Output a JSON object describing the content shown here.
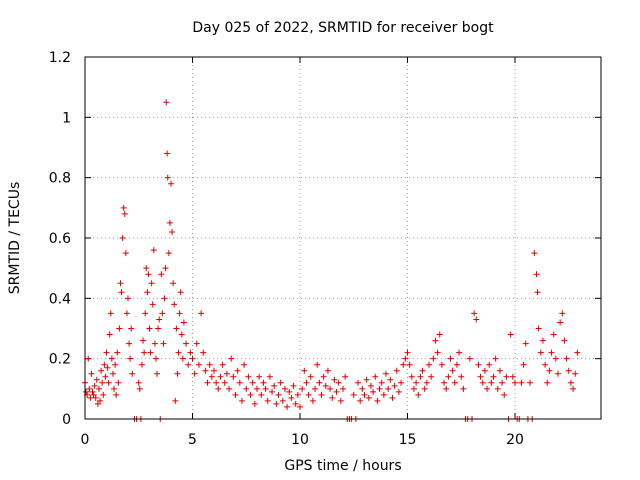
{
  "chart_data": {
    "type": "scatter",
    "title": "Day 025 of 2022, SRMTID for receiver bogt",
    "xlabel": "GPS time / hours",
    "ylabel": "SRMTID / TECUs",
    "xlim": [
      0,
      24
    ],
    "ylim": [
      0,
      1.2
    ],
    "xticks": [
      0,
      5,
      10,
      15,
      20
    ],
    "xtick_labels": [
      "0",
      "5",
      "10",
      "15",
      "20"
    ],
    "yticks": [
      0,
      0.2,
      0.4,
      0.6,
      0.8,
      1,
      1.2
    ],
    "ytick_labels": [
      "0",
      "0.2",
      "0.4",
      "0.6",
      "0.8",
      "1",
      "1.2"
    ],
    "grid": true,
    "marker": "+",
    "series": [
      {
        "name": "SRMTID",
        "color": "#e00000",
        "points": [
          [
            0.0,
            0.12
          ],
          [
            0.05,
            0.09
          ],
          [
            0.1,
            0.08
          ],
          [
            0.15,
            0.2
          ],
          [
            0.2,
            0.1
          ],
          [
            0.25,
            0.07
          ],
          [
            0.3,
            0.15
          ],
          [
            0.35,
            0.09
          ],
          [
            0.4,
            0.08
          ],
          [
            0.45,
            0.11
          ],
          [
            0.5,
            0.07
          ],
          [
            0.55,
            0.13
          ],
          [
            0.6,
            0.05
          ],
          [
            0.65,
            0.1
          ],
          [
            0.7,
            0.06
          ],
          [
            0.75,
            0.16
          ],
          [
            0.8,
            0.12
          ],
          [
            0.85,
            0.08
          ],
          [
            0.9,
            0.18
          ],
          [
            0.95,
            0.14
          ],
          [
            1.0,
            0.22
          ],
          [
            1.05,
            0.17
          ],
          [
            1.1,
            0.12
          ],
          [
            1.15,
            0.28
          ],
          [
            1.2,
            0.35
          ],
          [
            1.25,
            0.2
          ],
          [
            1.3,
            0.15
          ],
          [
            1.35,
            0.1
          ],
          [
            1.4,
            0.18
          ],
          [
            1.45,
            0.08
          ],
          [
            1.5,
            0.22
          ],
          [
            1.55,
            0.12
          ],
          [
            1.6,
            0.3
          ],
          [
            1.65,
            0.45
          ],
          [
            1.7,
            0.42
          ],
          [
            1.75,
            0.6
          ],
          [
            1.8,
            0.7
          ],
          [
            1.85,
            0.68
          ],
          [
            1.9,
            0.55
          ],
          [
            1.95,
            0.35
          ],
          [
            2.0,
            0.4
          ],
          [
            2.05,
            0.25
          ],
          [
            2.1,
            0.2
          ],
          [
            2.15,
            0.3
          ],
          [
            2.2,
            0.15
          ],
          [
            2.3,
            0.0
          ],
          [
            2.4,
            0.0
          ],
          [
            2.5,
            0.12
          ],
          [
            2.55,
            0.1
          ],
          [
            2.6,
            0.0
          ],
          [
            2.65,
            0.18
          ],
          [
            2.7,
            0.26
          ],
          [
            2.75,
            0.22
          ],
          [
            2.8,
            0.35
          ],
          [
            2.85,
            0.5
          ],
          [
            2.9,
            0.42
          ],
          [
            2.95,
            0.48
          ],
          [
            3.0,
            0.3
          ],
          [
            3.05,
            0.22
          ],
          [
            3.1,
            0.45
          ],
          [
            3.15,
            0.38
          ],
          [
            3.2,
            0.56
          ],
          [
            3.25,
            0.25
          ],
          [
            3.3,
            0.2
          ],
          [
            3.35,
            0.15
          ],
          [
            3.4,
            0.3
          ],
          [
            3.45,
            0.33
          ],
          [
            3.5,
            0.0
          ],
          [
            3.55,
            0.48
          ],
          [
            3.6,
            0.35
          ],
          [
            3.65,
            0.25
          ],
          [
            3.7,
            0.4
          ],
          [
            3.75,
            0.5
          ],
          [
            3.78,
            1.05
          ],
          [
            3.82,
            0.88
          ],
          [
            3.85,
            0.8
          ],
          [
            3.9,
            0.55
          ],
          [
            3.95,
            0.65
          ],
          [
            4.0,
            0.78
          ],
          [
            4.05,
            0.62
          ],
          [
            4.1,
            0.45
          ],
          [
            4.15,
            0.38
          ],
          [
            4.2,
            0.06
          ],
          [
            4.25,
            0.3
          ],
          [
            4.3,
            0.15
          ],
          [
            4.35,
            0.22
          ],
          [
            4.4,
            0.35
          ],
          [
            4.45,
            0.42
          ],
          [
            4.5,
            0.28
          ],
          [
            4.55,
            0.2
          ],
          [
            4.6,
            0.32
          ],
          [
            4.7,
            0.25
          ],
          [
            4.8,
            0.18
          ],
          [
            4.9,
            0.22
          ],
          [
            5.0,
            0.2
          ],
          [
            5.1,
            0.15
          ],
          [
            5.2,
            0.25
          ],
          [
            5.3,
            0.18
          ],
          [
            5.4,
            0.35
          ],
          [
            5.5,
            0.22
          ],
          [
            5.6,
            0.16
          ],
          [
            5.7,
            0.12
          ],
          [
            5.8,
            0.18
          ],
          [
            5.9,
            0.14
          ],
          [
            6.0,
            0.16
          ],
          [
            6.1,
            0.12
          ],
          [
            6.2,
            0.1
          ],
          [
            6.3,
            0.14
          ],
          [
            6.4,
            0.18
          ],
          [
            6.5,
            0.12
          ],
          [
            6.6,
            0.15
          ],
          [
            6.7,
            0.1
          ],
          [
            6.8,
            0.2
          ],
          [
            6.9,
            0.14
          ],
          [
            7.0,
            0.08
          ],
          [
            7.1,
            0.16
          ],
          [
            7.2,
            0.12
          ],
          [
            7.3,
            0.06
          ],
          [
            7.4,
            0.18
          ],
          [
            7.5,
            0.1
          ],
          [
            7.6,
            0.14
          ],
          [
            7.7,
            0.08
          ],
          [
            7.8,
            0.12
          ],
          [
            7.9,
            0.05
          ],
          [
            8.0,
            0.1
          ],
          [
            8.1,
            0.14
          ],
          [
            8.2,
            0.08
          ],
          [
            8.3,
            0.12
          ],
          [
            8.4,
            0.1
          ],
          [
            8.5,
            0.06
          ],
          [
            8.6,
            0.14
          ],
          [
            8.7,
            0.09
          ],
          [
            8.8,
            0.11
          ],
          [
            8.9,
            0.05
          ],
          [
            9.0,
            0.08
          ],
          [
            9.1,
            0.12
          ],
          [
            9.2,
            0.06
          ],
          [
            9.3,
            0.1
          ],
          [
            9.4,
            0.04
          ],
          [
            9.5,
            0.09
          ],
          [
            9.6,
            0.07
          ],
          [
            9.7,
            0.11
          ],
          [
            9.8,
            0.05
          ],
          [
            9.9,
            0.08
          ],
          [
            10.0,
            0.04
          ],
          [
            10.1,
            0.1
          ],
          [
            10.2,
            0.16
          ],
          [
            10.3,
            0.12
          ],
          [
            10.4,
            0.08
          ],
          [
            10.5,
            0.14
          ],
          [
            10.6,
            0.06
          ],
          [
            10.7,
            0.1
          ],
          [
            10.8,
            0.18
          ],
          [
            10.9,
            0.12
          ],
          [
            11.0,
            0.08
          ],
          [
            11.1,
            0.14
          ],
          [
            11.2,
            0.11
          ],
          [
            11.3,
            0.16
          ],
          [
            11.4,
            0.1
          ],
          [
            11.5,
            0.07
          ],
          [
            11.6,
            0.13
          ],
          [
            11.7,
            0.09
          ],
          [
            11.8,
            0.12
          ],
          [
            11.9,
            0.06
          ],
          [
            12.0,
            0.1
          ],
          [
            12.1,
            0.14
          ],
          [
            12.2,
            0.0
          ],
          [
            12.3,
            0.0
          ],
          [
            12.4,
            0.0
          ],
          [
            12.5,
            0.08
          ],
          [
            12.6,
            0.0
          ],
          [
            12.7,
            0.12
          ],
          [
            12.8,
            0.06
          ],
          [
            12.9,
            0.1
          ],
          [
            13.0,
            0.08
          ],
          [
            13.1,
            0.13
          ],
          [
            13.2,
            0.07
          ],
          [
            13.3,
            0.11
          ],
          [
            13.4,
            0.09
          ],
          [
            13.5,
            0.14
          ],
          [
            13.6,
            0.06
          ],
          [
            13.7,
            0.1
          ],
          [
            13.8,
            0.12
          ],
          [
            13.9,
            0.08
          ],
          [
            14.0,
            0.15
          ],
          [
            14.1,
            0.1
          ],
          [
            14.2,
            0.13
          ],
          [
            14.3,
            0.07
          ],
          [
            14.4,
            0.11
          ],
          [
            14.5,
            0.16
          ],
          [
            14.6,
            0.09
          ],
          [
            14.7,
            0.12
          ],
          [
            14.8,
            0.18
          ],
          [
            14.9,
            0.2
          ],
          [
            15.0,
            0.22
          ],
          [
            15.1,
            0.18
          ],
          [
            15.2,
            0.14
          ],
          [
            15.3,
            0.1
          ],
          [
            15.4,
            0.12
          ],
          [
            15.5,
            0.08
          ],
          [
            15.6,
            0.14
          ],
          [
            15.7,
            0.16
          ],
          [
            15.8,
            0.1
          ],
          [
            15.9,
            0.12
          ],
          [
            16.0,
            0.18
          ],
          [
            16.1,
            0.14
          ],
          [
            16.2,
            0.2
          ],
          [
            16.3,
            0.26
          ],
          [
            16.4,
            0.22
          ],
          [
            16.5,
            0.28
          ],
          [
            16.6,
            0.18
          ],
          [
            16.7,
            0.12
          ],
          [
            16.8,
            0.1
          ],
          [
            16.9,
            0.14
          ],
          [
            17.0,
            0.2
          ],
          [
            17.1,
            0.16
          ],
          [
            17.2,
            0.12
          ],
          [
            17.3,
            0.18
          ],
          [
            17.4,
            0.22
          ],
          [
            17.5,
            0.14
          ],
          [
            17.6,
            0.1
          ],
          [
            17.7,
            0.0
          ],
          [
            17.8,
            0.0
          ],
          [
            17.9,
            0.2
          ],
          [
            18.0,
            0.0
          ],
          [
            18.1,
            0.35
          ],
          [
            18.2,
            0.33
          ],
          [
            18.3,
            0.18
          ],
          [
            18.4,
            0.14
          ],
          [
            18.5,
            0.12
          ],
          [
            18.6,
            0.16
          ],
          [
            18.7,
            0.1
          ],
          [
            18.8,
            0.18
          ],
          [
            18.9,
            0.12
          ],
          [
            19.0,
            0.14
          ],
          [
            19.1,
            0.2
          ],
          [
            19.2,
            0.1
          ],
          [
            19.3,
            0.16
          ],
          [
            19.4,
            0.12
          ],
          [
            19.5,
            0.08
          ],
          [
            19.6,
            0.14
          ],
          [
            19.7,
            0.0
          ],
          [
            19.8,
            0.28
          ],
          [
            19.9,
            0.14
          ],
          [
            20.0,
            0.12
          ],
          [
            20.1,
            0.0
          ],
          [
            20.2,
            0.0
          ],
          [
            20.3,
            0.12
          ],
          [
            20.4,
            0.18
          ],
          [
            20.5,
            0.25
          ],
          [
            20.6,
            0.0
          ],
          [
            20.7,
            0.12
          ],
          [
            20.8,
            0.0
          ],
          [
            20.9,
            0.55
          ],
          [
            21.0,
            0.48
          ],
          [
            21.05,
            0.42
          ],
          [
            21.1,
            0.3
          ],
          [
            21.2,
            0.22
          ],
          [
            21.3,
            0.26
          ],
          [
            21.4,
            0.18
          ],
          [
            21.5,
            0.12
          ],
          [
            21.6,
            0.16
          ],
          [
            21.7,
            0.22
          ],
          [
            21.8,
            0.28
          ],
          [
            21.9,
            0.2
          ],
          [
            22.0,
            0.15
          ],
          [
            22.1,
            0.32
          ],
          [
            22.2,
            0.35
          ],
          [
            22.3,
            0.26
          ],
          [
            22.4,
            0.2
          ],
          [
            22.5,
            0.16
          ],
          [
            22.6,
            0.12
          ],
          [
            22.7,
            0.1
          ],
          [
            22.8,
            0.15
          ],
          [
            22.9,
            0.22
          ]
        ]
      }
    ]
  }
}
